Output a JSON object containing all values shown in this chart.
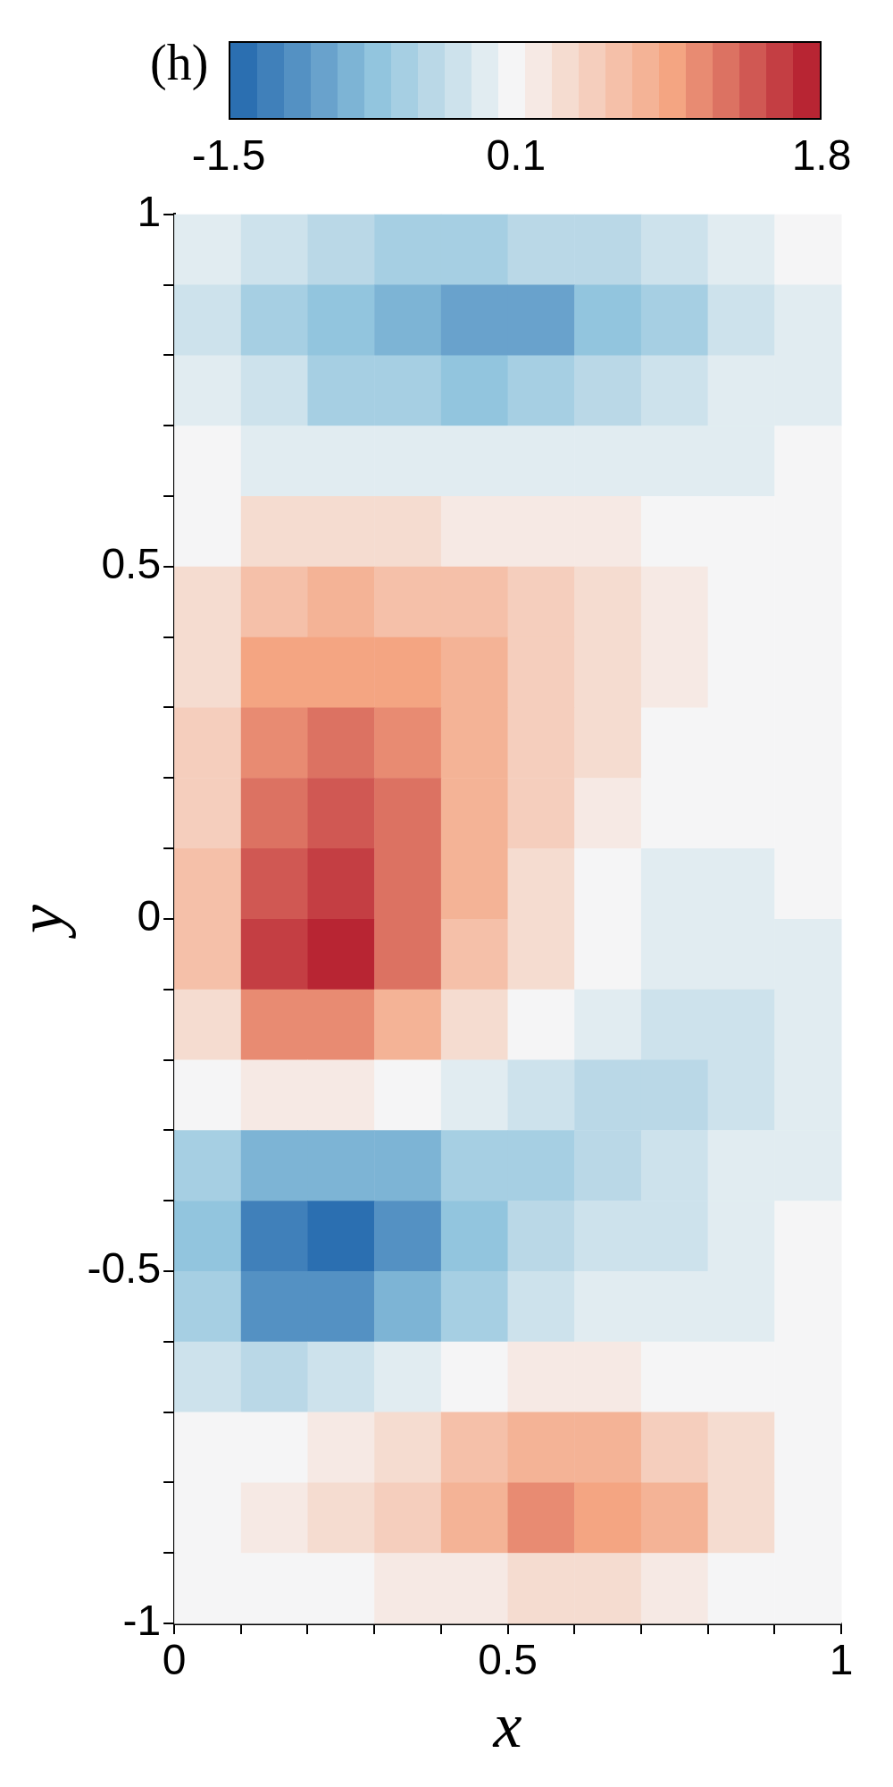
{
  "chart_data": {
    "type": "heatmap",
    "annotations": [
      "(h)"
    ],
    "xlabel": "x",
    "ylabel": "y",
    "cells": [
      [
        -0.1,
        -0.3,
        -0.45,
        -0.5,
        -0.5,
        -0.45,
        -0.35,
        -0.2,
        -0.1,
        0
      ],
      [
        -0.2,
        -0.5,
        -0.75,
        -0.9,
        -1.0,
        -0.95,
        -0.75,
        -0.5,
        -0.25,
        -0.05
      ],
      [
        -0.1,
        -0.3,
        -0.5,
        -0.6,
        -0.65,
        -0.6,
        -0.45,
        -0.3,
        -0.15,
        -0.05
      ],
      [
        0,
        -0.05,
        -0.1,
        -0.15,
        -0.15,
        -0.15,
        -0.1,
        -0.1,
        -0.05,
        0
      ],
      [
        0.1,
        0.3,
        0.35,
        0.3,
        0.25,
        0.2,
        0.15,
        0.1,
        0.05,
        0
      ],
      [
        0.3,
        0.7,
        0.8,
        0.7,
        0.6,
        0.5,
        0.35,
        0.2,
        0.05,
        0
      ],
      [
        0.4,
        0.9,
        1.0,
        0.95,
        0.75,
        0.55,
        0.35,
        0.15,
        0.05,
        0
      ],
      [
        0.5,
        1.05,
        1.2,
        1.1,
        0.85,
        0.55,
        0.3,
        0.1,
        0,
        0
      ],
      [
        0.55,
        1.25,
        1.35,
        1.2,
        0.85,
        0.5,
        0.2,
        0.05,
        0,
        0
      ],
      [
        0.6,
        1.45,
        1.55,
        1.25,
        0.8,
        0.4,
        0.1,
        -0.05,
        -0.05,
        0
      ],
      [
        0.6,
        1.5,
        1.65,
        1.2,
        0.7,
        0.3,
        0,
        -0.15,
        -0.15,
        -0.05
      ],
      [
        0.4,
        1.1,
        1.1,
        0.8,
        0.4,
        0.1,
        -0.15,
        -0.25,
        -0.25,
        -0.05
      ],
      [
        0,
        0.2,
        0.25,
        0.1,
        -0.1,
        -0.25,
        -0.35,
        -0.4,
        -0.3,
        -0.05
      ],
      [
        -0.5,
        -0.8,
        -0.9,
        -0.8,
        -0.6,
        -0.5,
        -0.45,
        -0.3,
        -0.15,
        -0.05
      ],
      [
        -0.7,
        -1.3,
        -1.45,
        -1.2,
        -0.7,
        -0.4,
        -0.3,
        -0.2,
        -0.1,
        0
      ],
      [
        -0.6,
        -1.1,
        -1.1,
        -0.9,
        -0.5,
        -0.2,
        -0.1,
        -0.1,
        -0.05,
        0
      ],
      [
        -0.3,
        -0.4,
        -0.3,
        -0.1,
        0.1,
        0.2,
        0.2,
        0.1,
        0.05,
        0
      ],
      [
        0,
        0.1,
        0.2,
        0.4,
        0.65,
        0.8,
        0.75,
        0.55,
        0.3,
        0.05
      ],
      [
        0.05,
        0.15,
        0.3,
        0.5,
        0.8,
        1.05,
        1.0,
        0.75,
        0.4,
        0.05
      ],
      [
        0,
        0.05,
        0.1,
        0.15,
        0.25,
        0.3,
        0.3,
        0.2,
        0.1,
        0
      ]
    ],
    "clim": [
      -1.5,
      1.8
    ],
    "cticks": [
      -1.5,
      0.1,
      1.8
    ],
    "xlim": [
      0,
      1
    ],
    "ylim": [
      -1,
      1
    ],
    "xticks": [
      0,
      {
        "value": 0.1,
        "label": null
      },
      {
        "value": 0.2,
        "label": null
      },
      {
        "value": 0.3,
        "label": null
      },
      {
        "value": 0.4,
        "label": null
      },
      0.5,
      {
        "value": 0.6,
        "label": null
      },
      {
        "value": 0.7,
        "label": null
      },
      {
        "value": 0.8,
        "label": null
      },
      {
        "value": 0.9,
        "label": null
      },
      1
    ],
    "yticks": [
      -1,
      {
        "value": -0.9,
        "label": null
      },
      {
        "value": -0.8,
        "label": null
      },
      {
        "value": -0.7,
        "label": null
      },
      {
        "value": -0.6,
        "label": null
      },
      -0.5,
      {
        "value": -0.4,
        "label": null
      },
      {
        "value": -0.3,
        "label": null
      },
      {
        "value": -0.2,
        "label": null
      },
      {
        "value": -0.1,
        "label": null
      },
      0,
      {
        "value": 0.1,
        "label": null
      },
      {
        "value": 0.2,
        "label": null
      },
      {
        "value": 0.3,
        "label": null
      },
      {
        "value": 0.4,
        "label": null
      },
      0.5,
      {
        "value": 0.6,
        "label": null
      },
      {
        "value": 0.7,
        "label": null
      },
      {
        "value": 0.8,
        "label": null
      },
      {
        "value": 0.9,
        "label": null
      },
      1
    ]
  }
}
